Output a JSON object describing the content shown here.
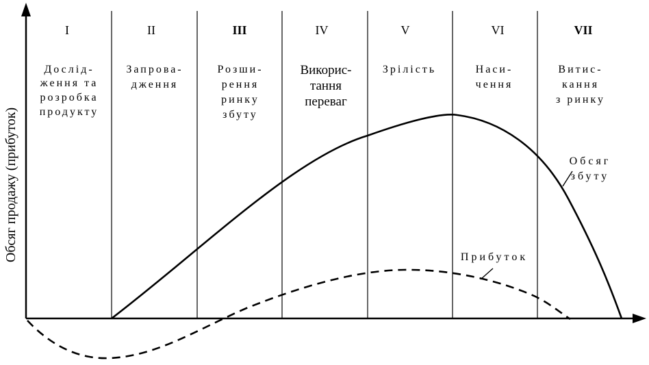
{
  "y_axis_label": "Обсяг продажу (прибуток)",
  "stages": [
    {
      "numeral": "I",
      "bold": false,
      "lines": [
        "Дослід-",
        "ження та",
        "розробка",
        "продукту"
      ]
    },
    {
      "numeral": "II",
      "bold": false,
      "lines": [
        "Запрова-",
        "дження"
      ]
    },
    {
      "numeral": "III",
      "bold": true,
      "lines": [
        "Розши-",
        "рення",
        "ринку",
        "збуту"
      ]
    },
    {
      "numeral": "IV",
      "bold": false,
      "lines": [
        "Викорис-",
        "тання",
        "переваг"
      ],
      "label_bold": true
    },
    {
      "numeral": "V",
      "bold": false,
      "lines": [
        "Зрілість"
      ]
    },
    {
      "numeral": "VI",
      "bold": false,
      "lines": [
        "Наси-",
        "чення"
      ]
    },
    {
      "numeral": "VII",
      "bold": true,
      "lines": [
        "Витис-",
        "кання",
        "з ринку"
      ]
    }
  ],
  "curves": {
    "sales_label": [
      "Обсяг",
      "збуту"
    ],
    "profit_label": "Прибуток"
  },
  "colors": {
    "line": "#000000",
    "background": "#ffffff"
  }
}
